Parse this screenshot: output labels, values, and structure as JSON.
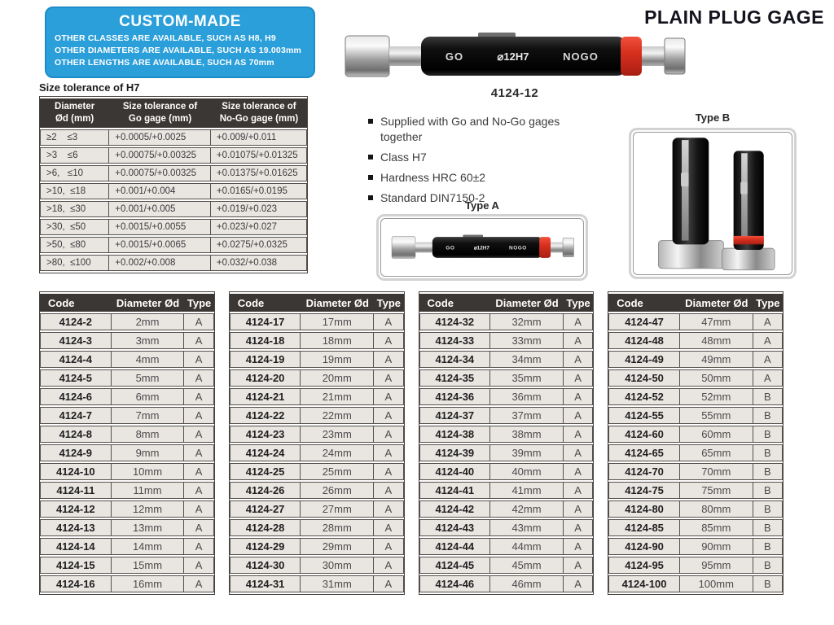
{
  "page_title": "PLAIN PLUG GAGE",
  "custom_made": {
    "title": "CUSTOM-MADE",
    "line1": "OTHER CLASSES ARE AVAILABLE, SUCH AS H8, H9",
    "line2": "OTHER DIAMETERS ARE AVAILABLE, SUCH AS 19.003mm",
    "line3": "OTHER LENGTHS ARE AVAILABLE, SUCH AS 70mm"
  },
  "product": {
    "go": "GO",
    "size": "⌀12H7",
    "nogo": "NOGO",
    "code": "4124-12",
    "type_a": "Type A",
    "type_b": "Type B"
  },
  "features": {
    "f1": "Supplied with Go and No-Go gages together",
    "f2": "Class H7",
    "f3": "Hardness HRC 60±2",
    "f4": "Standard DIN7150-2"
  },
  "tolerance": {
    "caption": "Size tolerance of H7",
    "headers": [
      "Diameter\nØd (mm)",
      "Size tolerance of\nGo gage (mm)",
      "Size tolerance of\nNo-Go gage (mm)"
    ],
    "rows": [
      [
        "≥2    ≤3",
        "+0.0005/+0.0025",
        "+0.009/+0.011"
      ],
      [
        ">3    ≤6",
        "+0.00075/+0.00325",
        "+0.01075/+0.01325"
      ],
      [
        ">6,   ≤10",
        "+0.00075/+0.00325",
        "+0.01375/+0.01625"
      ],
      [
        ">10,  ≤18",
        "+0.001/+0.004",
        "+0.0165/+0.0195"
      ],
      [
        ">18,  ≤30",
        "+0.001/+0.005",
        "+0.019/+0.023"
      ],
      [
        ">30,  ≤50",
        "+0.0015/+0.0055",
        "+0.023/+0.027"
      ],
      [
        ">50,  ≤80",
        "+0.0015/+0.0065",
        "+0.0275/+0.0325"
      ],
      [
        ">80,  ≤100",
        "+0.002/+0.008",
        "+0.032/+0.038"
      ]
    ]
  },
  "code_tables": {
    "headers": [
      "Code",
      "Diameter Ød",
      "Type"
    ],
    "t1": {
      "rows": [
        [
          "4124-2",
          "2mm",
          "A"
        ],
        [
          "4124-3",
          "3mm",
          "A"
        ],
        [
          "4124-4",
          "4mm",
          "A"
        ],
        [
          "4124-5",
          "5mm",
          "A"
        ],
        [
          "4124-6",
          "6mm",
          "A"
        ],
        [
          "4124-7",
          "7mm",
          "A"
        ],
        [
          "4124-8",
          "8mm",
          "A"
        ],
        [
          "4124-9",
          "9mm",
          "A"
        ],
        [
          "4124-10",
          "10mm",
          "A"
        ],
        [
          "4124-11",
          "11mm",
          "A"
        ],
        [
          "4124-12",
          "12mm",
          "A"
        ],
        [
          "4124-13",
          "13mm",
          "A"
        ],
        [
          "4124-14",
          "14mm",
          "A"
        ],
        [
          "4124-15",
          "15mm",
          "A"
        ],
        [
          "4124-16",
          "16mm",
          "A"
        ]
      ]
    },
    "t2": {
      "rows": [
        [
          "4124-17",
          "17mm",
          "A"
        ],
        [
          "4124-18",
          "18mm",
          "A"
        ],
        [
          "4124-19",
          "19mm",
          "A"
        ],
        [
          "4124-20",
          "20mm",
          "A"
        ],
        [
          "4124-21",
          "21mm",
          "A"
        ],
        [
          "4124-22",
          "22mm",
          "A"
        ],
        [
          "4124-23",
          "23mm",
          "A"
        ],
        [
          "4124-24",
          "24mm",
          "A"
        ],
        [
          "4124-25",
          "25mm",
          "A"
        ],
        [
          "4124-26",
          "26mm",
          "A"
        ],
        [
          "4124-27",
          "27mm",
          "A"
        ],
        [
          "4124-28",
          "28mm",
          "A"
        ],
        [
          "4124-29",
          "29mm",
          "A"
        ],
        [
          "4124-30",
          "30mm",
          "A"
        ],
        [
          "4124-31",
          "31mm",
          "A"
        ]
      ]
    },
    "t3": {
      "rows": [
        [
          "4124-32",
          "32mm",
          "A"
        ],
        [
          "4124-33",
          "33mm",
          "A"
        ],
        [
          "4124-34",
          "34mm",
          "A"
        ],
        [
          "4124-35",
          "35mm",
          "A"
        ],
        [
          "4124-36",
          "36mm",
          "A"
        ],
        [
          "4124-37",
          "37mm",
          "A"
        ],
        [
          "4124-38",
          "38mm",
          "A"
        ],
        [
          "4124-39",
          "39mm",
          "A"
        ],
        [
          "4124-40",
          "40mm",
          "A"
        ],
        [
          "4124-41",
          "41mm",
          "A"
        ],
        [
          "4124-42",
          "42mm",
          "A"
        ],
        [
          "4124-43",
          "43mm",
          "A"
        ],
        [
          "4124-44",
          "44mm",
          "A"
        ],
        [
          "4124-45",
          "45mm",
          "A"
        ],
        [
          "4124-46",
          "46mm",
          "A"
        ]
      ]
    },
    "t4": {
      "rows": [
        [
          "4124-47",
          "47mm",
          "A"
        ],
        [
          "4124-48",
          "48mm",
          "A"
        ],
        [
          "4124-49",
          "49mm",
          "A"
        ],
        [
          "4124-50",
          "50mm",
          "A"
        ],
        [
          "4124-52",
          "52mm",
          "B"
        ],
        [
          "4124-55",
          "55mm",
          "B"
        ],
        [
          "4124-60",
          "60mm",
          "B"
        ],
        [
          "4124-65",
          "65mm",
          "B"
        ],
        [
          "4124-70",
          "70mm",
          "B"
        ],
        [
          "4124-75",
          "75mm",
          "B"
        ],
        [
          "4124-80",
          "80mm",
          "B"
        ],
        [
          "4124-85",
          "85mm",
          "B"
        ],
        [
          "4124-90",
          "90mm",
          "B"
        ],
        [
          "4124-95",
          "95mm",
          "B"
        ],
        [
          "4124-100",
          "100mm",
          "B"
        ]
      ]
    }
  },
  "colors": {
    "accent_blue": "#2b9fda",
    "header_dark": "#3b3734",
    "row_gray": "#e9e6e2",
    "gage_red": "#d8301f"
  }
}
